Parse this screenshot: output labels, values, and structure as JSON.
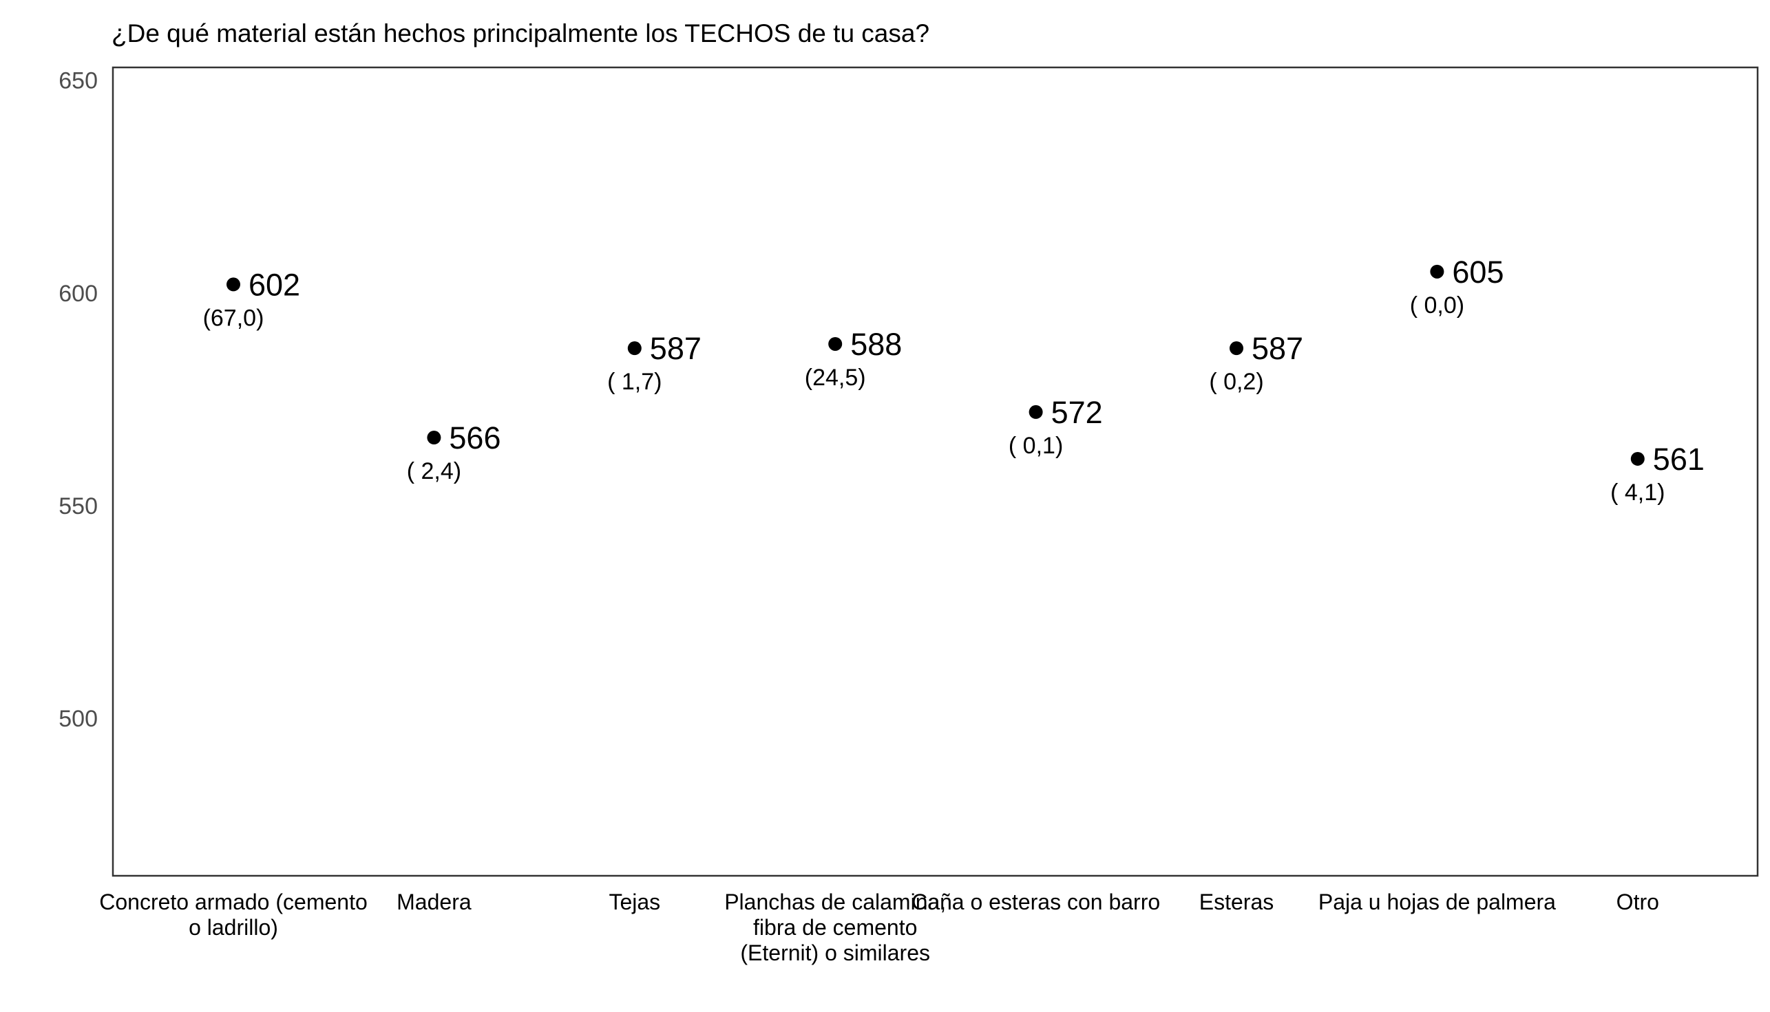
{
  "chart_data": {
    "type": "scatter",
    "title": "¿De qué material están hechos principalmente los TECHOS de tu casa?",
    "xlabel": "",
    "ylabel": "",
    "ylim": [
      463,
      653
    ],
    "yticks": [
      500,
      550,
      600,
      650
    ],
    "grid": false,
    "categories": [
      [
        "Concreto armado (cemento",
        "o ladrillo)"
      ],
      [
        "Madera"
      ],
      [
        "Tejas"
      ],
      [
        "Planchas de calamina,",
        "fibra de cemento",
        "(Eternit) o similares"
      ],
      [
        "Caña o esteras con barro"
      ],
      [
        "Esteras"
      ],
      [
        "Paja u hojas de palmera"
      ],
      [
        "Otro"
      ]
    ],
    "values": [
      602,
      566,
      587,
      588,
      572,
      587,
      605,
      561
    ],
    "value_labels": [
      "602",
      "566",
      "587",
      "588",
      "572",
      "587",
      "605",
      "561"
    ],
    "percent_labels": [
      "(67,0)",
      "( 2,4)",
      "( 1,7)",
      "(24,5)",
      "( 0,1)",
      "( 0,2)",
      "( 0,0)",
      "( 4,1)"
    ]
  }
}
